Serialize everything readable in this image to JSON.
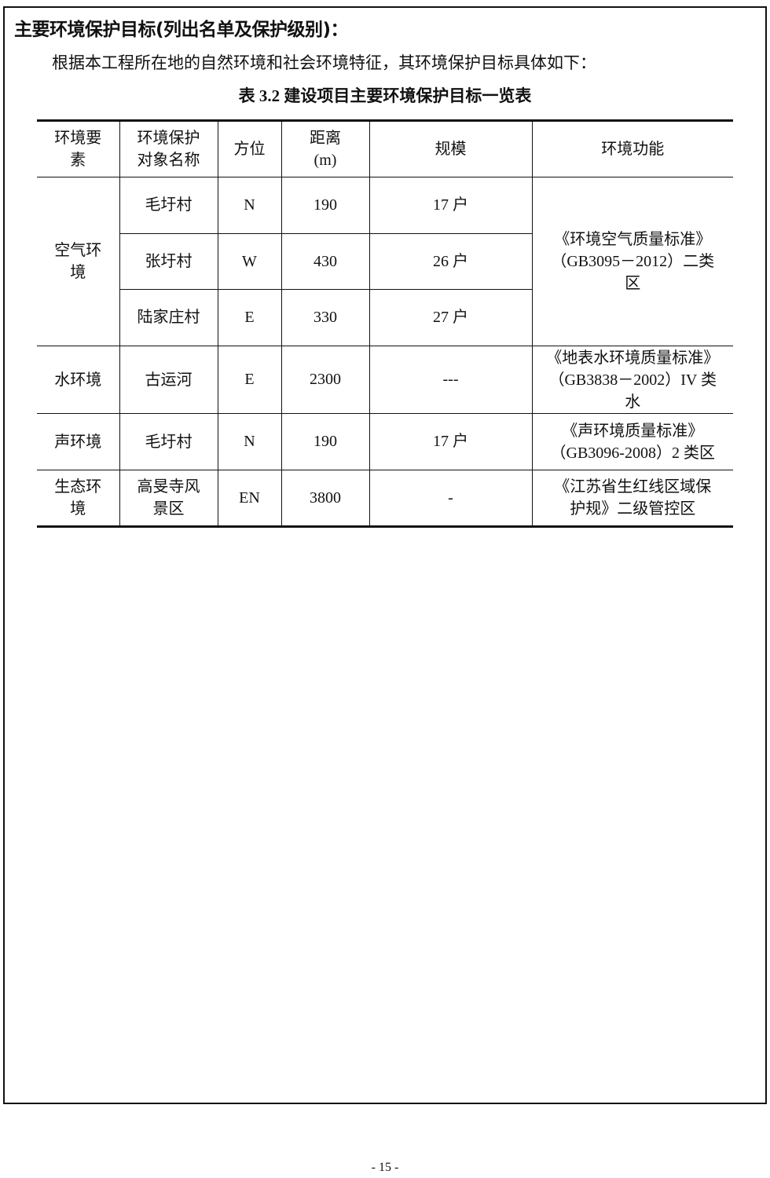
{
  "heading": "主要环境保护目标(列出名单及保护级别)：",
  "intro": "根据本工程所在地的自然环境和社会环境特征，其环境保护目标具体如下：",
  "caption": "表 3.2  建设项目主要环境保护目标一览表",
  "table": {
    "headers": [
      [
        "环境要",
        "素"
      ],
      [
        "环境保护",
        "对象名称"
      ],
      [
        "方位"
      ],
      [
        "距离",
        "(m)"
      ],
      [
        "规模"
      ],
      [
        "环境功能"
      ]
    ],
    "air": {
      "element": [
        "空气环",
        "境"
      ],
      "rows": [
        {
          "name": "毛圩村",
          "dir": "N",
          "dist": "190",
          "scale": "17 户"
        },
        {
          "name": "张圩村",
          "dir": "W",
          "dist": "430",
          "scale": "26 户"
        },
        {
          "name": "陆家庄村",
          "dir": "E",
          "dist": "330",
          "scale": "27 户"
        }
      ],
      "function": [
        "《环境空气质量标准》",
        "（GB3095－2012）二类",
        "区"
      ]
    },
    "water": {
      "element": [
        "水环境"
      ],
      "name": [
        "古运河"
      ],
      "dir": "E",
      "dist": "2300",
      "scale": "---",
      "function": [
        "《地表水环境质量标准》",
        "（GB3838－2002）IV 类",
        "水"
      ]
    },
    "noise": {
      "element": [
        "声环境"
      ],
      "name": [
        "毛圩村"
      ],
      "dir": "N",
      "dist": "190",
      "scale": "17 户",
      "function": [
        "《声环境质量标准》",
        "（GB3096-2008）2 类区"
      ]
    },
    "eco": {
      "element": [
        "生态环",
        "境"
      ],
      "name": [
        "高旻寺风",
        "景区"
      ],
      "dir": "EN",
      "dist": "3800",
      "scale": "-",
      "function": [
        "《江苏省生红线区域保",
        "护规》二级管控区"
      ]
    }
  },
  "page_number": "- 15 -"
}
